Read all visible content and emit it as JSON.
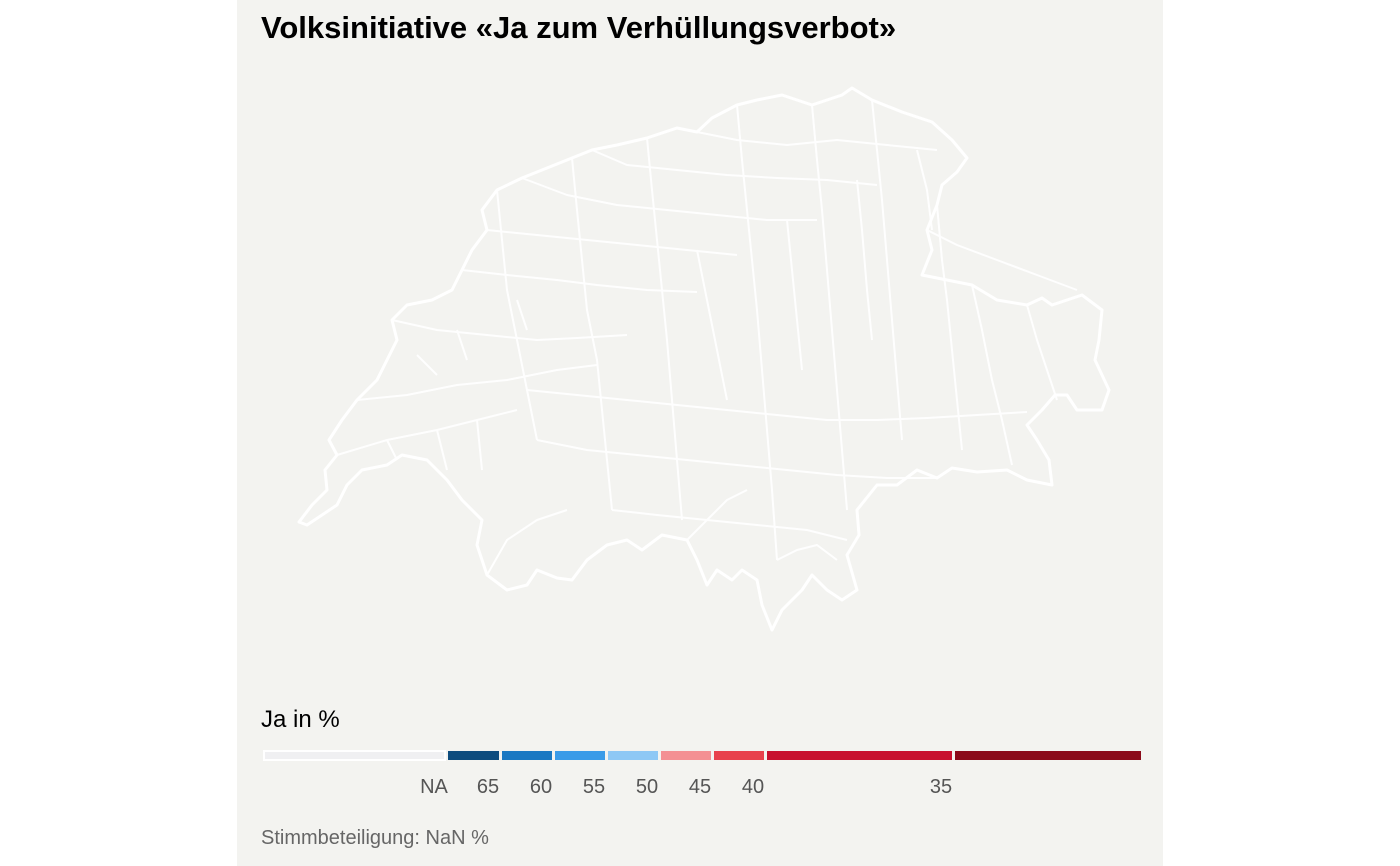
{
  "title": "Volksinitiative «Ja zum Verhüllungsverbot»",
  "map": {
    "region": "Schweiz",
    "fill_color": "#f3f3f0",
    "border_color": "#ffffff"
  },
  "legend": {
    "title": "Ja in %",
    "bins": [
      {
        "label": "NA",
        "color": "#f0f0f2"
      },
      {
        "label": "65",
        "color": "#0e4c7e"
      },
      {
        "label": "60",
        "color": "#1a78c2"
      },
      {
        "label": "55",
        "color": "#3a9be8"
      },
      {
        "label": "50",
        "color": "#8ec8f5"
      },
      {
        "label": "45",
        "color": "#f49093"
      },
      {
        "label": "40",
        "color": "#e8414c"
      },
      {
        "label": "35",
        "color": "#c8102e"
      },
      {
        "label": "",
        "color": "#8b0a1a"
      }
    ]
  },
  "caption": "Stimmbeteiligung: NaN %"
}
